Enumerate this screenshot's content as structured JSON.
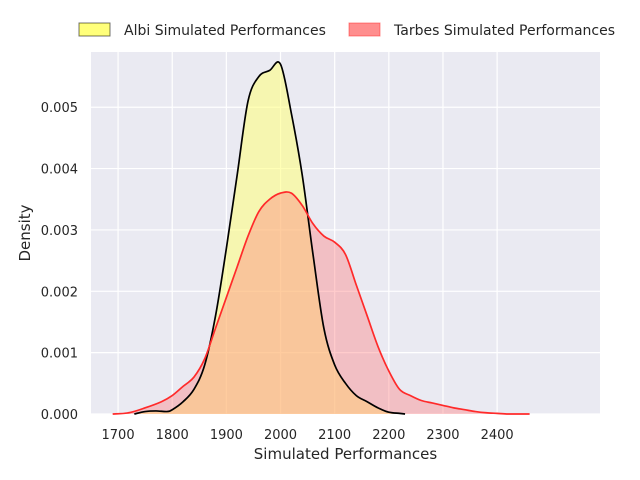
{
  "chart_data": {
    "type": "area",
    "title": "",
    "xlabel": "Simulated Performances",
    "ylabel": "Density",
    "xlim": [
      1650,
      2590
    ],
    "ylim": [
      0,
      0.0059
    ],
    "xticks": [
      1700,
      1800,
      1900,
      2000,
      2100,
      2200,
      2300,
      2400
    ],
    "xtick_labels": [
      "1700",
      "1800",
      "1900",
      "2000",
      "2100",
      "2200",
      "2300",
      "2400"
    ],
    "yticks": [
      0,
      0.001,
      0.002,
      0.003,
      0.004,
      0.005
    ],
    "ytick_labels": [
      "0.000",
      "0.001",
      "0.002",
      "0.003",
      "0.004",
      "0.005"
    ],
    "grid": true,
    "legend_position": "top-center",
    "series": [
      {
        "name": "Albi Simulated Performances",
        "fill": "#ffff7a",
        "line": "#000000",
        "fill_opacity": 0.55,
        "x": [
          1730,
          1750,
          1770,
          1790,
          1800,
          1820,
          1840,
          1860,
          1880,
          1900,
          1920,
          1940,
          1960,
          1980,
          2000,
          2020,
          2040,
          2060,
          2080,
          2100,
          2120,
          2140,
          2160,
          2180,
          2200,
          2220,
          2230
        ],
        "y": [
          0.0,
          4e-05,
          5e-05,
          4e-05,
          7e-05,
          0.0002,
          0.0004,
          0.0008,
          0.0016,
          0.0027,
          0.0039,
          0.0051,
          0.0055,
          0.0056,
          0.0057,
          0.0049,
          0.0039,
          0.0026,
          0.0014,
          0.0008,
          0.0005,
          0.0003,
          0.0002,
          0.0001,
          3e-05,
          1e-05,
          0.0
        ]
      },
      {
        "name": "Tarbes Simulated Performances",
        "fill": "#ff7a7a",
        "line": "#ff2a2a",
        "fill_opacity": 0.38,
        "x": [
          1690,
          1720,
          1750,
          1780,
          1800,
          1820,
          1840,
          1860,
          1880,
          1900,
          1920,
          1940,
          1960,
          1980,
          2000,
          2020,
          2040,
          2060,
          2080,
          2100,
          2120,
          2140,
          2160,
          2180,
          2200,
          2220,
          2240,
          2260,
          2280,
          2300,
          2320,
          2340,
          2360,
          2380,
          2400,
          2420,
          2440,
          2460
        ],
        "y": [
          0.0,
          2e-05,
          0.0001,
          0.0002,
          0.0003,
          0.00045,
          0.0006,
          0.0009,
          0.0014,
          0.0019,
          0.0024,
          0.0029,
          0.0033,
          0.0035,
          0.0036,
          0.0036,
          0.0034,
          0.0031,
          0.0029,
          0.0028,
          0.0026,
          0.0021,
          0.0016,
          0.0011,
          0.0007,
          0.0004,
          0.0003,
          0.00022,
          0.00018,
          0.00014,
          0.0001,
          7e-05,
          4e-05,
          2e-05,
          1e-05,
          0.0,
          0.0,
          0.0
        ]
      }
    ]
  },
  "style": {
    "plot_background": "#eaeaf2",
    "grid_color": "#ffffff",
    "overlap_note_color": "#f3c98a"
  }
}
